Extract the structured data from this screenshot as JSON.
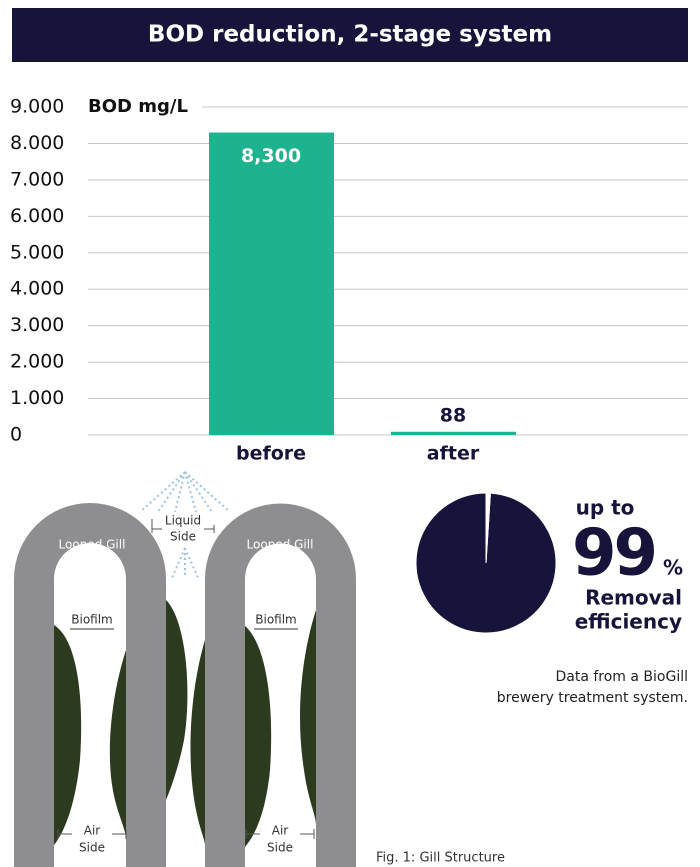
{
  "chart_data": [
    {
      "type": "bar",
      "title": "BOD reduction, 2-stage system",
      "y_label": "BOD mg/L",
      "categories": [
        "before",
        "after"
      ],
      "values": [
        8300,
        88
      ],
      "value_labels": [
        "8,300",
        "88"
      ],
      "color": "#1db38e",
      "ylim": [
        0,
        9000
      ],
      "yticks": [
        0,
        {
          "value": 1000,
          "label": "1.000"
        },
        {
          "value": 2000,
          "label": "2.000"
        },
        {
          "value": 3000,
          "label": "3.000"
        },
        {
          "value": 4000,
          "label": "4.000"
        },
        {
          "value": 5000,
          "label": "5.000"
        },
        {
          "value": 6000,
          "label": "6.000"
        },
        {
          "value": 7000,
          "label": "7.000"
        },
        {
          "value": 8000,
          "label": "8.000"
        },
        {
          "value": 9000,
          "label": "9.000"
        }
      ],
      "grid": true
    },
    {
      "type": "pie",
      "values": [
        99,
        1
      ],
      "colors": [
        "#16143a",
        "#ffffff"
      ],
      "prefix": "up to",
      "unit": "%",
      "caption": [
        "Removal",
        "efficiency"
      ],
      "note": [
        "Data from a BioGill",
        "brewery treatment system."
      ]
    }
  ],
  "diagram": {
    "liquid_side": [
      "Liquid",
      "Side"
    ],
    "looped_gill": [
      "Looped Gill",
      "Looped Gill"
    ],
    "biofilm": [
      "Biofilm",
      "Biofilm"
    ],
    "air_side": [
      [
        "Air",
        "Side"
      ],
      [
        "Air",
        "Side"
      ]
    ],
    "caption": "Fig. 1: Gill Structure"
  }
}
